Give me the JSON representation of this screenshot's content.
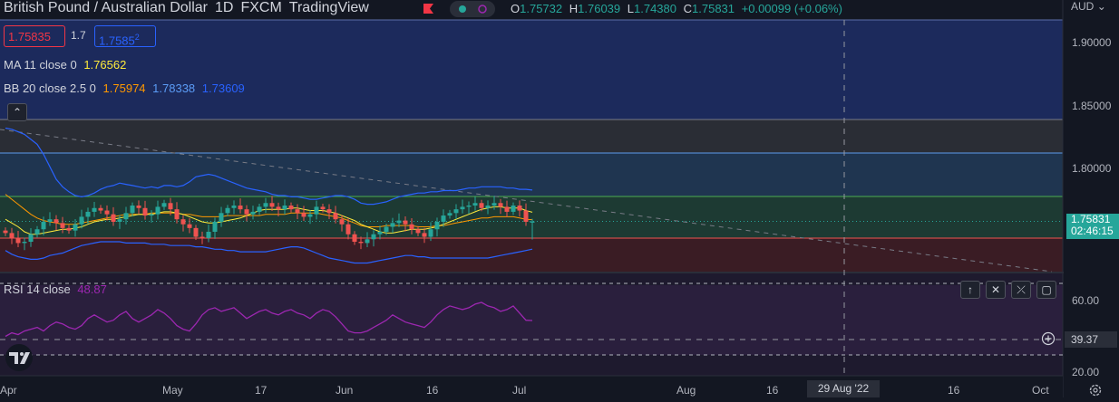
{
  "header": {
    "symbol": "British Pound / Australian Dollar",
    "interval": "1D",
    "exchange": "FXCM",
    "source": "TradingView",
    "ohlc": {
      "o_label": "O",
      "o": "1.75732",
      "h_label": "H",
      "h": "1.76039",
      "l_label": "L",
      "l": "1.74380",
      "c_label": "C",
      "c": "1.75831",
      "change": "+0.00099 (+0.06%)"
    },
    "currency": "AUD"
  },
  "trade": {
    "sell": "1.75835",
    "spread": "1.7",
    "buy": "1.7585",
    "buy_sup": "2"
  },
  "indicators": {
    "ma": {
      "label": "MA 11 close 0",
      "value": "1.76562"
    },
    "bb": {
      "label": "BB 20 close 2.5 0",
      "basis": "1.75974",
      "upper": "1.78338",
      "lower": "1.73609"
    },
    "rsi": {
      "label": "RSI 14 close",
      "value": "48.87"
    }
  },
  "price_axis": {
    "ticks": [
      "1.90000",
      "1.85000",
      "1.80000"
    ],
    "last_price": "1.75831",
    "countdown": "02:46:15"
  },
  "rsi_axis": {
    "ticks": [
      "60.00",
      "20.00"
    ],
    "crosshair_value": "39.37"
  },
  "time_axis": {
    "ticks": [
      "Apr",
      "May",
      "17",
      "Jun",
      "16",
      "Jul",
      "Aug",
      "16",
      "29 Aug '22",
      "16",
      "Oct"
    ],
    "crosshair_date": "29 Aug '22"
  },
  "colors": {
    "background": "#131722",
    "up": "#26a69a",
    "down": "#ef5350",
    "ma": "#ffeb3b",
    "bb_basis": "#ff9800",
    "bb_band": "#2962ff",
    "rsi": "#9c27b0"
  },
  "chart_data": [
    {
      "type": "candlestick",
      "title": "British Pound / Australian Dollar",
      "ylim": [
        1.72,
        1.92
      ],
      "y_ticks": [
        1.8,
        1.85,
        1.9
      ],
      "x_labels": [
        "Apr",
        "May",
        "17",
        "Jun",
        "16",
        "Jul",
        "Aug",
        "16",
        "29 Aug '22",
        "16",
        "Oct"
      ],
      "closes": [
        1.749,
        1.745,
        1.741,
        1.742,
        1.748,
        1.752,
        1.758,
        1.76,
        1.757,
        1.753,
        1.751,
        1.756,
        1.762,
        1.766,
        1.769,
        1.767,
        1.764,
        1.758,
        1.76,
        1.765,
        1.771,
        1.769,
        1.763,
        1.764,
        1.77,
        1.773,
        1.768,
        1.76,
        1.756,
        1.753,
        1.746,
        1.745,
        1.75,
        1.758,
        1.765,
        1.769,
        1.771,
        1.768,
        1.764,
        1.766,
        1.77,
        1.773,
        1.77,
        1.768,
        1.771,
        1.768,
        1.765,
        1.762,
        1.764,
        1.77,
        1.768,
        1.765,
        1.76,
        1.756,
        1.748,
        1.742,
        1.741,
        1.744,
        1.748,
        1.75,
        1.754,
        1.757,
        1.759,
        1.756,
        1.752,
        1.749,
        1.746,
        1.752,
        1.758,
        1.763,
        1.765,
        1.768,
        1.77,
        1.771,
        1.773,
        1.769,
        1.771,
        1.773,
        1.77,
        1.766,
        1.771,
        1.767,
        1.758,
        1.7583
      ],
      "last": {
        "open": 1.75732,
        "high": 1.76039,
        "low": 1.7438,
        "close": 1.75831
      },
      "bb_upper": [
        1.833,
        1.832,
        1.83,
        1.828,
        1.824,
        1.82,
        1.812,
        1.802,
        1.792,
        1.786,
        1.782,
        1.779,
        1.778,
        1.779,
        1.781,
        1.784,
        1.786,
        1.787,
        1.789,
        1.788,
        1.787,
        1.786,
        1.785,
        1.786,
        1.785,
        1.787,
        1.787,
        1.786,
        1.787,
        1.79,
        1.794,
        1.795,
        1.796,
        1.795,
        1.793,
        1.791,
        1.789,
        1.787,
        1.785,
        1.784,
        1.783,
        1.782,
        1.78,
        1.779,
        1.779,
        1.778,
        1.778,
        1.777,
        1.776,
        1.776,
        1.777,
        1.778,
        1.779,
        1.779,
        1.778,
        1.776,
        1.773,
        1.772,
        1.772,
        1.773,
        1.774,
        1.776,
        1.778,
        1.779,
        1.78,
        1.781,
        1.781,
        1.782,
        1.782,
        1.783,
        1.783,
        1.783,
        1.784,
        1.785,
        1.785,
        1.786,
        1.786,
        1.786,
        1.786,
        1.785,
        1.785,
        1.784,
        1.784,
        1.78338
      ],
      "bb_lower": [
        1.735,
        1.732,
        1.73,
        1.729,
        1.728,
        1.728,
        1.729,
        1.731,
        1.732,
        1.733,
        1.735,
        1.737,
        1.739,
        1.74,
        1.741,
        1.742,
        1.742,
        1.742,
        1.742,
        1.741,
        1.741,
        1.741,
        1.741,
        1.74,
        1.74,
        1.74,
        1.739,
        1.739,
        1.739,
        1.739,
        1.738,
        1.738,
        1.737,
        1.736,
        1.736,
        1.735,
        1.735,
        1.734,
        1.734,
        1.734,
        1.734,
        1.734,
        1.735,
        1.736,
        1.737,
        1.738,
        1.738,
        1.737,
        1.735,
        1.733,
        1.731,
        1.729,
        1.728,
        1.727,
        1.726,
        1.725,
        1.725,
        1.725,
        1.726,
        1.727,
        1.728,
        1.729,
        1.73,
        1.731,
        1.731,
        1.73,
        1.73,
        1.729,
        1.729,
        1.729,
        1.729,
        1.729,
        1.729,
        1.729,
        1.729,
        1.729,
        1.729,
        1.73,
        1.731,
        1.732,
        1.733,
        1.734,
        1.735,
        1.73609
      ],
      "bb_basis": [
        1.78,
        1.776,
        1.772,
        1.768,
        1.764,
        1.761,
        1.759,
        1.758,
        1.757,
        1.756,
        1.756,
        1.756,
        1.757,
        1.758,
        1.759,
        1.76,
        1.761,
        1.762,
        1.763,
        1.764,
        1.764,
        1.764,
        1.764,
        1.765,
        1.765,
        1.765,
        1.765,
        1.765,
        1.764,
        1.764,
        1.763,
        1.762,
        1.762,
        1.762,
        1.762,
        1.763,
        1.763,
        1.763,
        1.763,
        1.763,
        1.763,
        1.764,
        1.764,
        1.764,
        1.764,
        1.765,
        1.765,
        1.765,
        1.765,
        1.765,
        1.764,
        1.763,
        1.762,
        1.761,
        1.759,
        1.757,
        1.755,
        1.754,
        1.754,
        1.754,
        1.755,
        1.755,
        1.755,
        1.755,
        1.755,
        1.754,
        1.754,
        1.754,
        1.755,
        1.755,
        1.756,
        1.757,
        1.758,
        1.759,
        1.76,
        1.761,
        1.761,
        1.762,
        1.762,
        1.762,
        1.762,
        1.761,
        1.76,
        1.75974
      ],
      "ma11": [
        1.76,
        1.757,
        1.754,
        1.75,
        1.748,
        1.748,
        1.749,
        1.75,
        1.751,
        1.752,
        1.752,
        1.753,
        1.754,
        1.756,
        1.758,
        1.759,
        1.76,
        1.76,
        1.761,
        1.762,
        1.763,
        1.764,
        1.764,
        1.764,
        1.765,
        1.766,
        1.766,
        1.765,
        1.764,
        1.762,
        1.76,
        1.758,
        1.757,
        1.757,
        1.758,
        1.759,
        1.76,
        1.761,
        1.763,
        1.765,
        1.767,
        1.768,
        1.768,
        1.768,
        1.768,
        1.769,
        1.769,
        1.768,
        1.767,
        1.767,
        1.767,
        1.766,
        1.765,
        1.763,
        1.761,
        1.759,
        1.756,
        1.754,
        1.752,
        1.75,
        1.749,
        1.749,
        1.75,
        1.751,
        1.752,
        1.752,
        1.752,
        1.753,
        1.754,
        1.756,
        1.758,
        1.76,
        1.762,
        1.764,
        1.766,
        1.768,
        1.769,
        1.77,
        1.77,
        1.769,
        1.769,
        1.769,
        1.767,
        1.76562
      ]
    },
    {
      "type": "line",
      "title": "RSI 14 close",
      "ylim": [
        15,
        70
      ],
      "y_ticks": [
        20,
        60
      ],
      "values": [
        40,
        42,
        41,
        43,
        44,
        45,
        43,
        46,
        48,
        47,
        45,
        44,
        46,
        50,
        52,
        50,
        48,
        49,
        52,
        54,
        50,
        48,
        50,
        52,
        55,
        53,
        50,
        46,
        44,
        43,
        47,
        52,
        55,
        56,
        54,
        55,
        56,
        53,
        50,
        52,
        54,
        55,
        53,
        52,
        54,
        55,
        53,
        52,
        50,
        53,
        55,
        54,
        51,
        47,
        43,
        42,
        42,
        43,
        45,
        47,
        49,
        52,
        50,
        48,
        47,
        46,
        45,
        48,
        52,
        55,
        57,
        56,
        55,
        56,
        58,
        59,
        57,
        56,
        54,
        55,
        57,
        53,
        49,
        48.87
      ]
    }
  ]
}
